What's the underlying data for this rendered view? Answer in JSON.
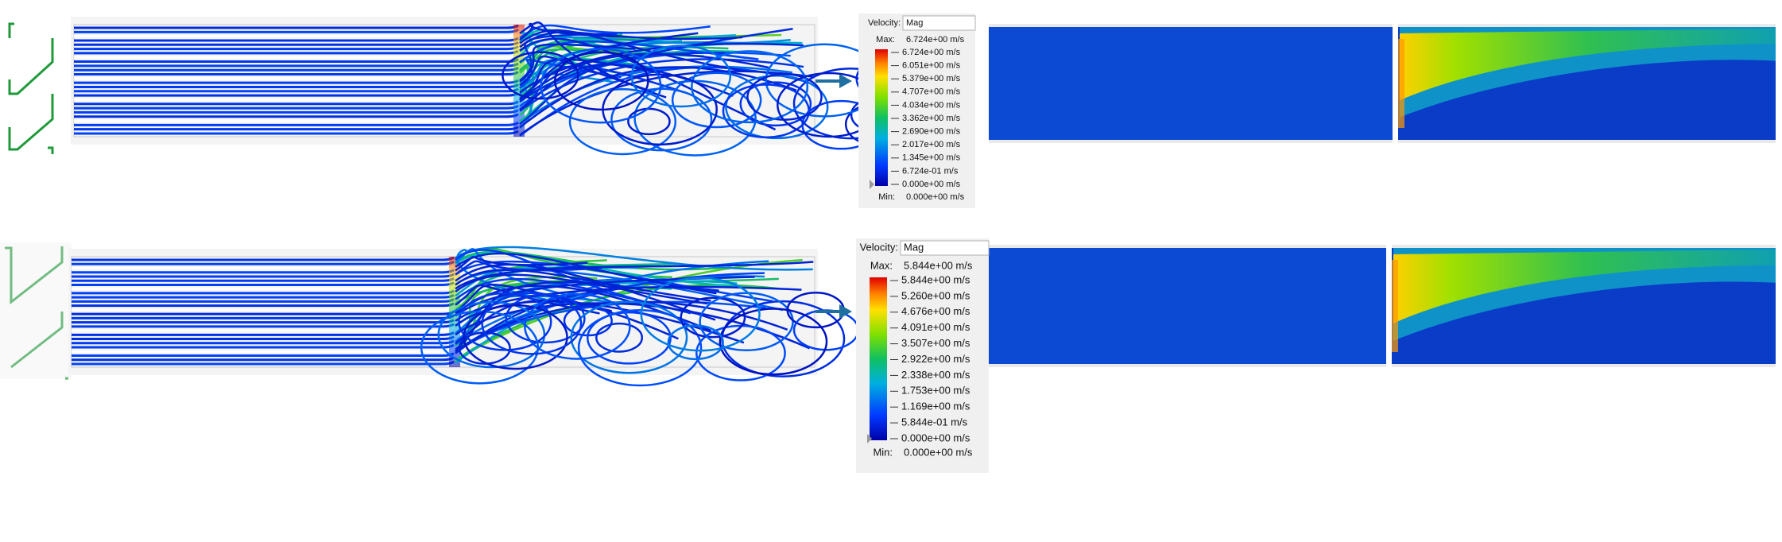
{
  "panels": [
    {
      "legend": {
        "quantity": "Velocity:",
        "component": "Mag",
        "max_label": "Max:",
        "max_value": "6.724e+00 m/s",
        "ticks": [
          "6.724e+00 m/s",
          "6.051e+00 m/s",
          "5.379e+00 m/s",
          "4.707e+00 m/s",
          "4.034e+00 m/s",
          "3.362e+00 m/s",
          "2.690e+00 m/s",
          "2.017e+00 m/s",
          "1.345e+00 m/s",
          "6.724e-01 m/s",
          "0.000e+00 m/s"
        ],
        "min_label": "Min:",
        "min_value": "0.000e+00 m/s"
      }
    },
    {
      "legend": {
        "quantity": "Velocity:",
        "component": "Mag",
        "max_label": "Max:",
        "max_value": "5.844e+00 m/s",
        "ticks": [
          "5.844e+00 m/s",
          "5.260e+00 m/s",
          "4.676e+00 m/s",
          "4.091e+00 m/s",
          "3.507e+00 m/s",
          "2.922e+00 m/s",
          "2.338e+00 m/s",
          "1.753e+00 m/s",
          "1.169e+00 m/s",
          "5.844e-01 m/s",
          "0.000e+00 m/s"
        ],
        "min_label": "Min:",
        "min_value": "0.000e+00 m/s"
      }
    }
  ]
}
